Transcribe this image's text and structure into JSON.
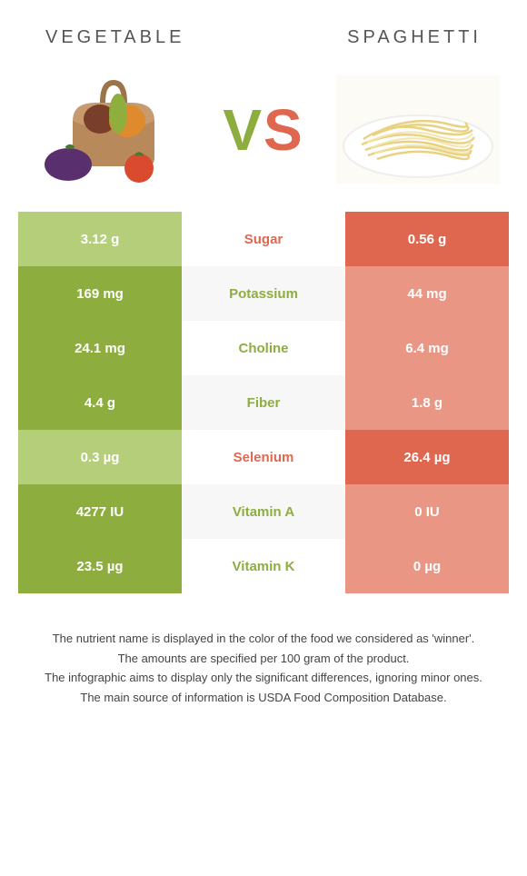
{
  "header": {
    "left_title": "Vegetable",
    "right_title": "Spaghetti"
  },
  "vs": {
    "v": "V",
    "s": "S"
  },
  "colors": {
    "left_win": "#8dae3e",
    "left_lose": "#b5ce7a",
    "right_win": "#e0674f",
    "right_lose": "#ea9684",
    "mid_left_text": "#8dae3e",
    "mid_right_text": "#e0674f"
  },
  "rows": [
    {
      "label": "Sugar",
      "left": "3.12 g",
      "right": "0.56 g",
      "winner": "right"
    },
    {
      "label": "Potassium",
      "left": "169 mg",
      "right": "44 mg",
      "winner": "left"
    },
    {
      "label": "Choline",
      "left": "24.1 mg",
      "right": "6.4 mg",
      "winner": "left"
    },
    {
      "label": "Fiber",
      "left": "4.4 g",
      "right": "1.8 g",
      "winner": "left"
    },
    {
      "label": "Selenium",
      "left": "0.3 µg",
      "right": "26.4 µg",
      "winner": "right"
    },
    {
      "label": "Vitamin A",
      "left": "4277 IU",
      "right": "0 IU",
      "winner": "left"
    },
    {
      "label": "Vitamin K",
      "left": "23.5 µg",
      "right": "0 µg",
      "winner": "left"
    }
  ],
  "footnotes": [
    "The nutrient name is displayed in the color of the food we considered as 'winner'.",
    "The amounts are specified per 100 gram of the product.",
    "The infographic aims to display only the significant differences, ignoring minor ones.",
    "The main source of information is USDA Food Composition Database."
  ]
}
